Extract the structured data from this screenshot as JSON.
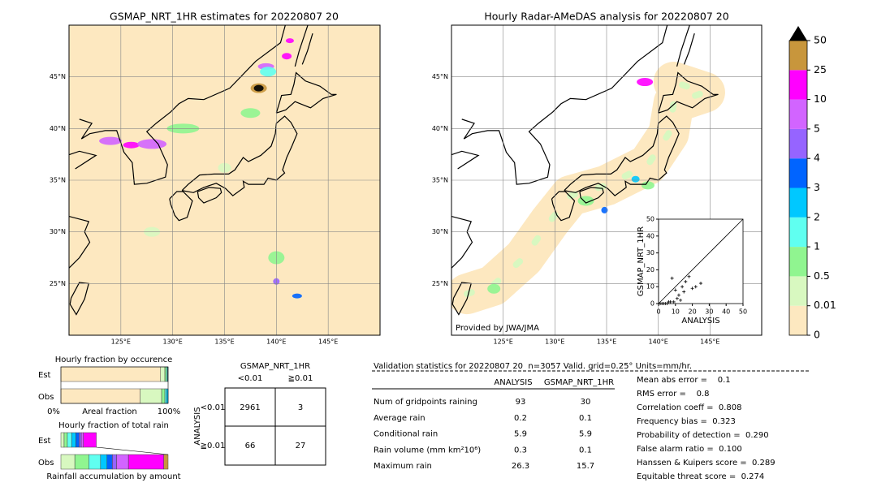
{
  "left_map": {
    "title": "GSMAP_NRT_1HR estimates for 20220807 20"
  },
  "right_map": {
    "title": "Hourly Radar-AMeDAS analysis for 20220807 20",
    "credit": "Provided by JWA/JMA"
  },
  "lat_lim": [
    20,
    50
  ],
  "lon_lim": [
    120,
    150
  ],
  "lat_ticks": [
    {
      "value": 45,
      "label": "45°N"
    },
    {
      "value": 40,
      "label": "40°N"
    },
    {
      "value": 35,
      "label": "35°N"
    },
    {
      "value": 30,
      "label": "30°N"
    },
    {
      "value": 25,
      "label": "25°N"
    }
  ],
  "lon_ticks": [
    {
      "value": 125,
      "label": "125°E"
    },
    {
      "value": 130,
      "label": "130°E"
    },
    {
      "value": 135,
      "label": "135°E"
    },
    {
      "value": 140,
      "label": "140°E"
    },
    {
      "value": 145,
      "label": "145°E"
    }
  ],
  "colorbar": {
    "levels": [
      0,
      0.01,
      0.5,
      1,
      2,
      3,
      4,
      5,
      10,
      25,
      50
    ],
    "colors": [
      "#fde8c0",
      "#d8f8c0",
      "#90f590",
      "#60fff0",
      "#00c8ff",
      "#0064ff",
      "#9664ff",
      "#d264ff",
      "#ff00ff",
      "#c8963c"
    ]
  },
  "scatter": {
    "type": "scatter",
    "xlabel": "ANALYSIS",
    "ylabel": "GSMAP_NRT_1HR",
    "xlim": [
      0,
      50
    ],
    "ylim": [
      0,
      50
    ],
    "xticks": [
      0,
      10,
      20,
      30,
      40,
      50
    ],
    "yticks": [
      0,
      10,
      20,
      30,
      40,
      50
    ],
    "x": [
      8,
      10,
      12,
      14,
      16,
      18,
      20,
      25,
      11,
      13,
      9,
      6,
      15,
      22,
      5,
      3,
      2,
      1,
      4,
      7
    ],
    "y": [
      15,
      8,
      5,
      10,
      13,
      16,
      9,
      12,
      3,
      2,
      1,
      1,
      7,
      10,
      0,
      0,
      0,
      0,
      0,
      1
    ]
  },
  "occurrence": {
    "title": "Hourly fraction by occurence",
    "rows": [
      "Est",
      "Obs"
    ],
    "axis_left": "0%",
    "axis_mid": "Areal fraction",
    "axis_right": "100%",
    "est": [
      93,
      4,
      1.5,
      1,
      0.5
    ],
    "obs": [
      74,
      20,
      3,
      1.5,
      1.5
    ]
  },
  "total_rain": {
    "title": "Hourly fraction of total rain",
    "rows": [
      "Est",
      "Obs"
    ],
    "caption": "Rainfall accumulation by amount",
    "est": [
      0,
      3,
      3,
      4,
      4,
      3,
      2,
      2,
      12,
      0
    ],
    "obs": [
      0,
      13,
      13,
      11,
      6,
      5,
      4,
      11,
      33,
      4
    ]
  },
  "contingency": {
    "title": "GSMAP_NRT_1HR",
    "col_labels": [
      "<0.01",
      "≧0.01"
    ],
    "row_title": "ANALYSIS",
    "row_labels": [
      "<0.01",
      "≧0.01"
    ],
    "cells": [
      [
        2961,
        3
      ],
      [
        66,
        27
      ]
    ]
  },
  "stats": {
    "header": "Validation statistics for 20220807 20  n=3057 Valid. grid=0.25° Units=mm/hr.",
    "columns": [
      "ANALYSIS",
      "GSMAP_NRT_1HR"
    ],
    "rows": [
      [
        "Num of gridpoints raining",
        93,
        30
      ],
      [
        "Average rain",
        0.2,
        0.1
      ],
      [
        "Conditional rain",
        5.9,
        5.9
      ],
      [
        "Rain volume (mm km²10⁶)",
        0.3,
        0.1
      ],
      [
        "Maximum rain",
        26.3,
        15.7
      ]
    ],
    "scores": [
      "Mean abs error =    0.1",
      "RMS error =    0.8",
      "Correlation coeff =  0.808",
      "Frequency bias =  0.323",
      "Probability of detection =  0.290",
      "False alarm ratio =  0.100",
      "Hanssen & Kuipers score =  0.289",
      "Equitable threat score =  0.274"
    ]
  }
}
